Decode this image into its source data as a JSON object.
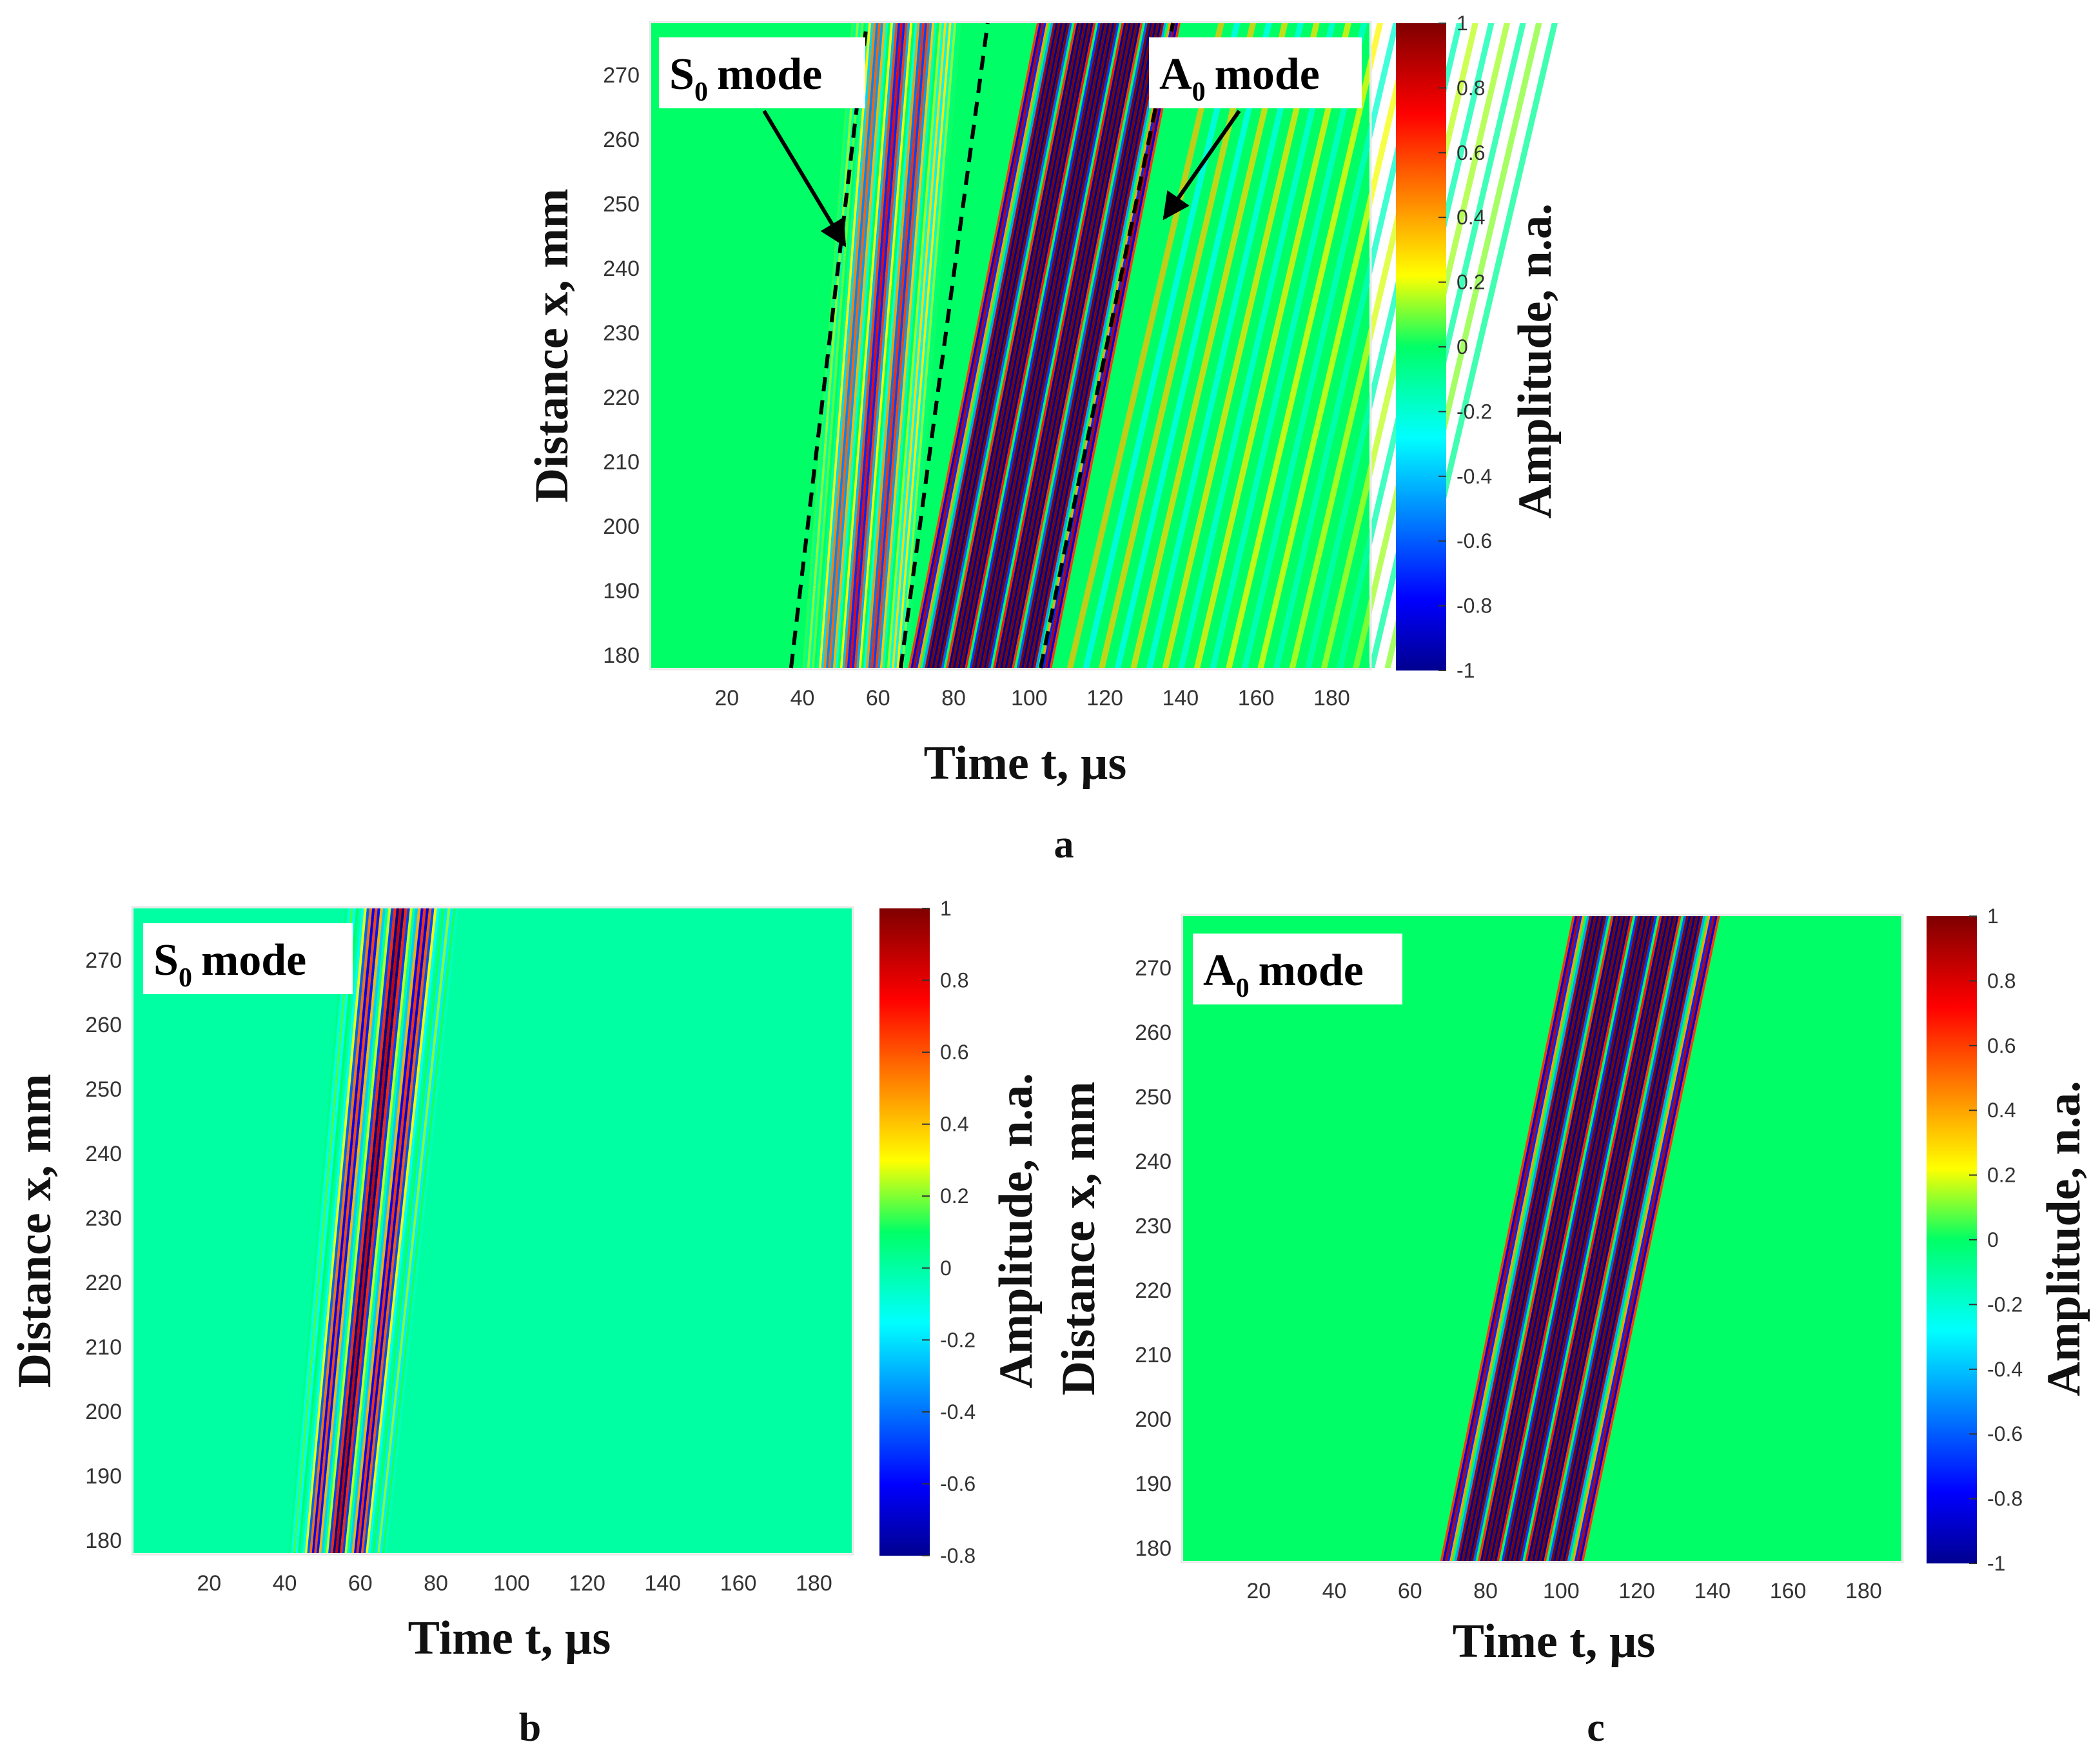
{
  "chart_data": [
    {
      "type": "heatmap",
      "panel": "a",
      "xlabel": "Time t, µs",
      "ylabel": "Distance x, mm",
      "colorbar_label": "Amplitude, n.a.",
      "xlim": [
        0,
        190
      ],
      "ylim": [
        178,
        278
      ],
      "xticks": [
        20,
        40,
        60,
        80,
        100,
        120,
        140,
        160,
        180
      ],
      "yticks": [
        180,
        190,
        200,
        210,
        220,
        230,
        240,
        250,
        260,
        270
      ],
      "clim": [
        -1,
        1
      ],
      "cticks": [
        1,
        0.8,
        0.6,
        0.4,
        0.2,
        0,
        -0.2,
        -0.4,
        -0.6,
        -0.8,
        -1
      ],
      "annotations": [
        {
          "label": "S",
          "sub": "0",
          "text": "mode"
        },
        {
          "label": "A",
          "sub": "0",
          "text": "mode"
        }
      ],
      "packets": [
        {
          "name": "S0",
          "t_start_at_180": 40,
          "t_start_at_278": 53,
          "t_end_at_180": 68,
          "t_end_at_278": 82,
          "peak_amplitude": 0.75
        },
        {
          "name": "A0",
          "t_start_at_180": 68,
          "t_start_at_278": 102,
          "t_end_at_180": 106,
          "t_end_at_278": 140,
          "peak_amplitude": 1.0
        }
      ],
      "boundary_lines": [
        {
          "t_at_180": 37,
          "t_at_278": 57
        },
        {
          "t_at_180": 66,
          "t_at_278": 89
        },
        {
          "t_at_180": 103,
          "t_at_278": 138
        }
      ]
    },
    {
      "type": "heatmap",
      "panel": "b",
      "xlabel": "Time t, µs",
      "ylabel": "Distance x, mm",
      "colorbar_label": "Amplitude, n.a.",
      "xlim": [
        0,
        190
      ],
      "ylim": [
        178,
        278
      ],
      "xticks": [
        20,
        40,
        60,
        80,
        100,
        120,
        140,
        160,
        180
      ],
      "yticks": [
        180,
        190,
        200,
        210,
        220,
        230,
        240,
        250,
        260,
        270
      ],
      "clim": [
        -0.8,
        1
      ],
      "cticks": [
        1,
        0.8,
        0.6,
        0.4,
        0.2,
        0,
        -0.2,
        -0.4,
        -0.6,
        -0.8
      ],
      "annotations": [
        {
          "label": "S",
          "sub": "0",
          "text": "mode"
        }
      ],
      "packets": [
        {
          "name": "S0",
          "t_start_at_180": 41,
          "t_start_at_278": 56,
          "t_end_at_180": 67,
          "t_end_at_278": 86,
          "peak_amplitude": 0.85
        }
      ]
    },
    {
      "type": "heatmap",
      "panel": "c",
      "xlabel": "Time t, µs",
      "ylabel": "Distance x, mm",
      "colorbar_label": "Amplitude, n.a.",
      "xlim": [
        0,
        190
      ],
      "ylim": [
        178,
        278
      ],
      "xticks": [
        20,
        40,
        60,
        80,
        100,
        120,
        140,
        160,
        180
      ],
      "yticks": [
        180,
        190,
        200,
        210,
        220,
        230,
        240,
        250,
        260,
        270
      ],
      "clim": [
        -1,
        1
      ],
      "cticks": [
        1,
        0.8,
        0.6,
        0.4,
        0.2,
        0,
        -0.2,
        -0.4,
        -0.6,
        -0.8,
        -1
      ],
      "annotations": [
        {
          "label": "A",
          "sub": "0",
          "text": "mode"
        }
      ],
      "packets": [
        {
          "name": "A0",
          "t_start_at_180": 68,
          "t_start_at_278": 103,
          "t_end_at_180": 106,
          "t_end_at_278": 142,
          "peak_amplitude": 1.0
        }
      ]
    }
  ]
}
